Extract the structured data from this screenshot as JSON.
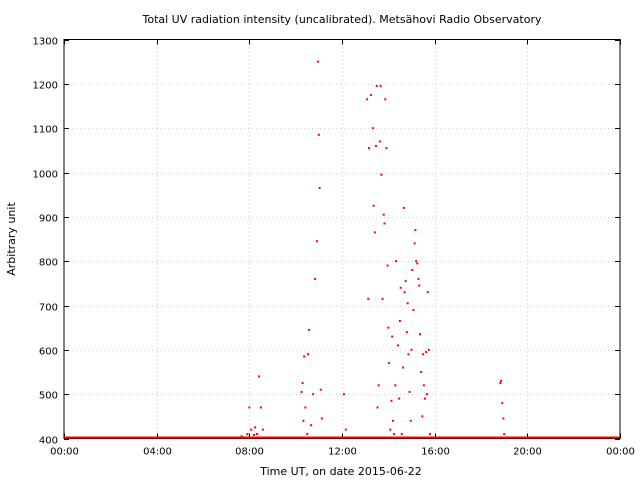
{
  "chart_data": {
    "type": "scatter",
    "title": "Total UV radiation intensity (uncalibrated). Metsähovi Radio Observatory",
    "xlabel": "Time UT, on date 2015-06-22",
    "ylabel": "Arbitrary unit",
    "xlim": [
      "00:00",
      "24:00"
    ],
    "ylim": [
      400,
      1300
    ],
    "x_ticks": [
      "00:00",
      "04:00",
      "08:00",
      "12:00",
      "16:00",
      "20:00",
      "00:00"
    ],
    "y_ticks": [
      400,
      500,
      600,
      700,
      800,
      900,
      1000,
      1100,
      1200,
      1300
    ],
    "grid": true,
    "legend": "none",
    "series": [
      {
        "color": "#ff0000",
        "x": [
          "07:40",
          "07:55",
          "08:00",
          "08:05",
          "08:12",
          "08:15",
          "08:20",
          "08:25",
          "08:30",
          "08:35",
          "10:15",
          "10:18",
          "10:20",
          "10:22",
          "10:25",
          "10:30",
          "10:32",
          "10:35",
          "10:40",
          "10:45",
          "10:50",
          "10:55",
          "10:58",
          "11:00",
          "11:02",
          "11:05",
          "11:08",
          "12:05",
          "12:10",
          "13:05",
          "13:08",
          "13:10",
          "13:15",
          "13:20",
          "13:22",
          "13:25",
          "13:28",
          "13:30",
          "13:32",
          "13:35",
          "13:38",
          "13:40",
          "13:42",
          "13:45",
          "13:48",
          "13:50",
          "13:52",
          "13:55",
          "13:58",
          "14:00",
          "14:02",
          "14:05",
          "14:08",
          "14:10",
          "14:12",
          "14:15",
          "14:18",
          "14:20",
          "14:25",
          "14:28",
          "14:30",
          "14:32",
          "14:35",
          "14:38",
          "14:40",
          "14:42",
          "14:45",
          "14:48",
          "14:50",
          "14:52",
          "14:55",
          "14:58",
          "15:00",
          "15:02",
          "15:05",
          "15:08",
          "15:10",
          "15:12",
          "15:15",
          "15:18",
          "15:20",
          "15:22",
          "15:25",
          "15:28",
          "15:30",
          "15:32",
          "15:35",
          "15:38",
          "15:40",
          "15:42",
          "15:45",
          "15:48",
          "18:50",
          "18:52",
          "18:55",
          "18:58",
          "19:00"
        ],
        "y": [
          405,
          410,
          470,
          420,
          408,
          425,
          410,
          540,
          470,
          420,
          505,
          525,
          440,
          585,
          470,
          410,
          590,
          645,
          430,
          500,
          760,
          845,
          1250,
          1085,
          965,
          510,
          445,
          500,
          420,
          1165,
          715,
          1055,
          1175,
          1100,
          925,
          865,
          1060,
          1195,
          470,
          520,
          1070,
          1195,
          995,
          715,
          905,
          885,
          1165,
          1055,
          790,
          650,
          570,
          420,
          485,
          630,
          440,
          410,
          520,
          800,
          610,
          490,
          665,
          740,
          410,
          560,
          920,
          730,
          755,
          640,
          705,
          590,
          505,
          440,
          600,
          780,
          690,
          840,
          870,
          800,
          795,
          760,
          745,
          635,
          550,
          450,
          590,
          520,
          490,
          595,
          500,
          730,
          600,
          410,
          525,
          530,
          480,
          445,
          410
        ]
      }
    ]
  }
}
